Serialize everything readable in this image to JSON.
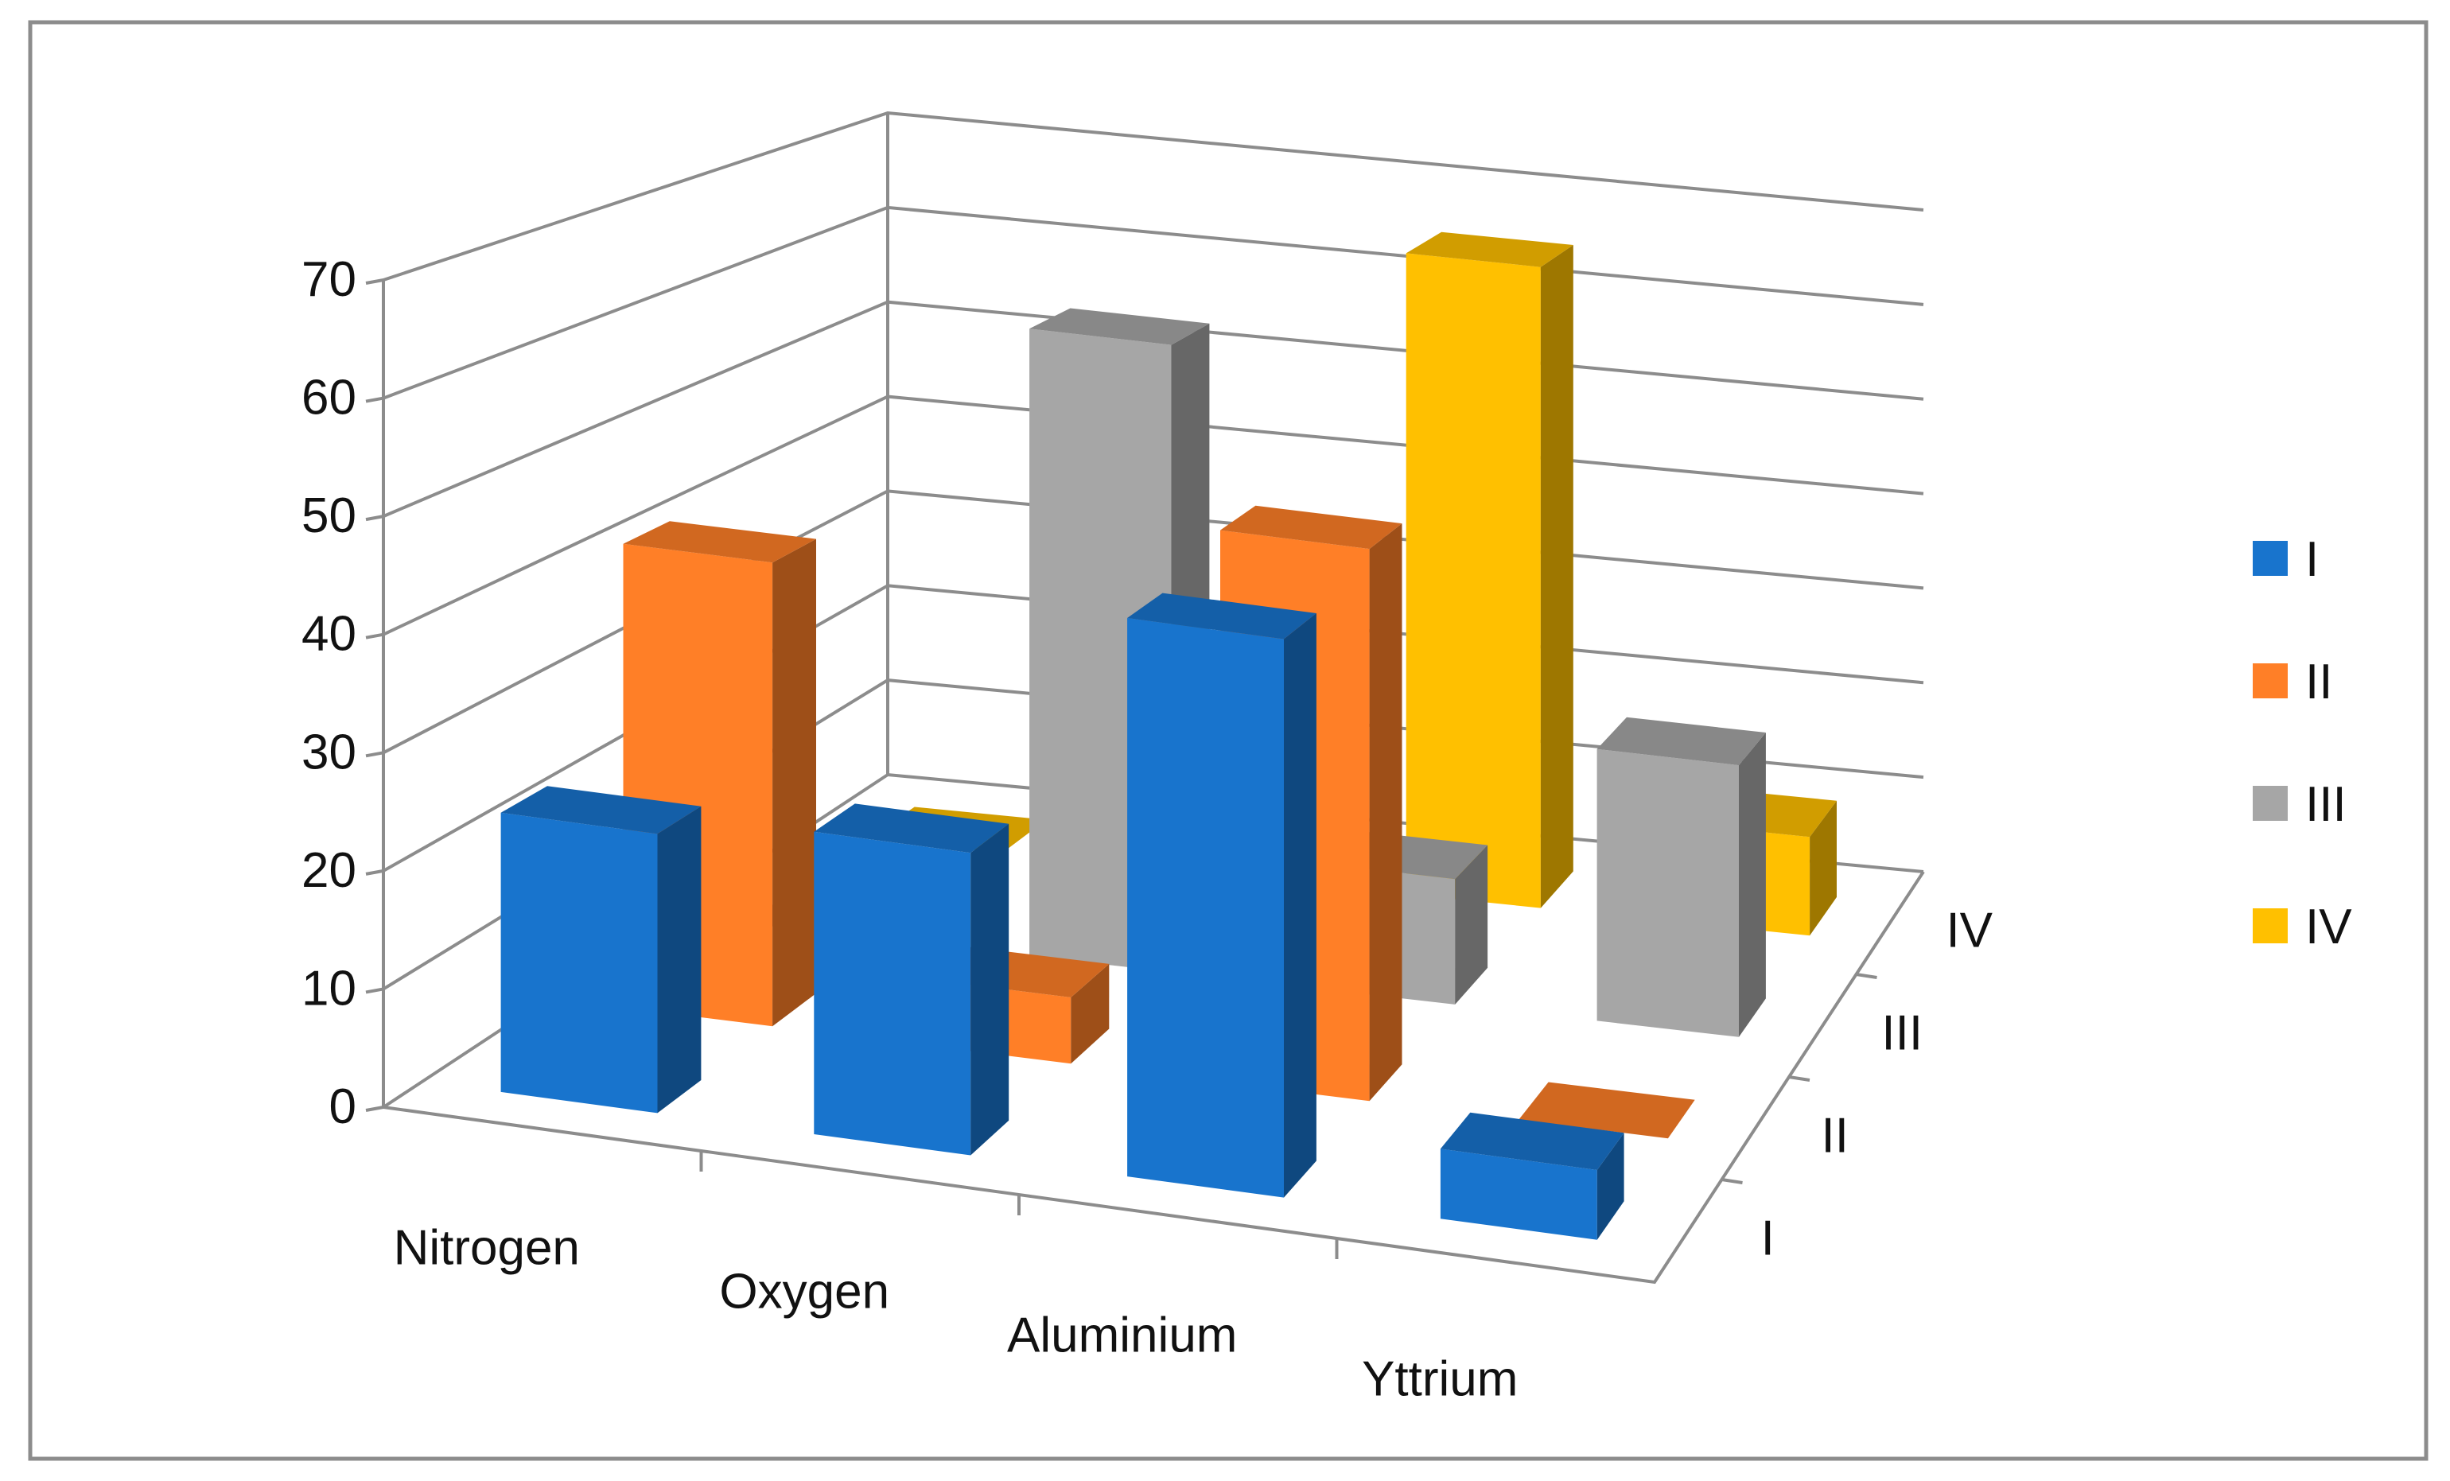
{
  "chart_data": {
    "type": "bar",
    "subtype": "3d-column",
    "categories": [
      "Nitrogen",
      "Oxygen",
      "Aluminium",
      "Yttrium"
    ],
    "depth_labels": [
      "I",
      "II",
      "III",
      "IV"
    ],
    "series": [
      {
        "name": "I",
        "color": "#1874CD",
        "values": [
          24,
          26,
          48,
          6
        ]
      },
      {
        "name": "II",
        "color": "#FF7F27",
        "values": [
          42,
          6,
          50,
          0
        ]
      },
      {
        "name": "III",
        "color": "#A6A6A6",
        "values": [
          0,
          60,
          12,
          26
        ]
      },
      {
        "name": "IV",
        "color": "#FFC000",
        "values": [
          0,
          0,
          65,
          10
        ]
      }
    ],
    "y_ticks": [
      "0",
      "10",
      "20",
      "30",
      "40",
      "50",
      "60",
      "70"
    ],
    "ylim": [
      0,
      70
    ],
    "grid": true,
    "legend_position": "right"
  }
}
